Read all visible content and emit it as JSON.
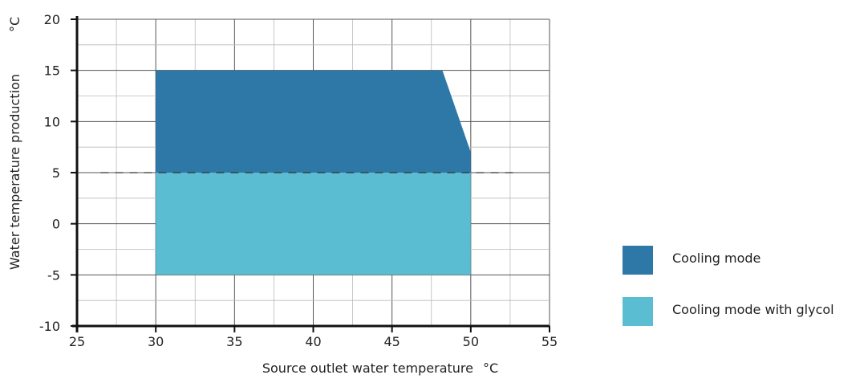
{
  "chart_data": {
    "type": "area",
    "title": "",
    "xlabel": "Source outlet water temperature",
    "xunit": "°C",
    "ylabel": "Water temperature production",
    "yunit": "°C",
    "xlim": [
      25,
      55
    ],
    "ylim": [
      -10,
      20
    ],
    "xticks": [
      "25",
      "30",
      "35",
      "40",
      "45",
      "50",
      "55"
    ],
    "yticks": [
      "20",
      "15",
      "10",
      "5",
      "0",
      "-5",
      "-10"
    ],
    "grid": true,
    "dashed_line": {
      "y": 5,
      "x": [
        26.5,
        53
      ]
    },
    "series": [
      {
        "name": "Cooling mode",
        "color": "#2e78a8",
        "polygon": [
          [
            30,
            5
          ],
          [
            30,
            15
          ],
          [
            48.2,
            15
          ],
          [
            50,
            7
          ],
          [
            50,
            5
          ]
        ]
      },
      {
        "name": "Cooling mode with glycol",
        "color": "#5bbdd1",
        "polygon": [
          [
            30,
            -5
          ],
          [
            30,
            5
          ],
          [
            50,
            5
          ],
          [
            50,
            -5
          ]
        ]
      }
    ],
    "legend_position": "right"
  }
}
